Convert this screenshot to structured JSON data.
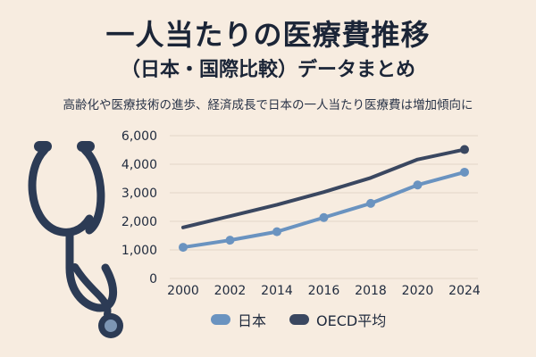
{
  "header": {
    "title": "一人当たりの医療費推移",
    "subtitle": "（日本・国際比較）データまとめ",
    "caption": "高齢化や医療技術の進歩、経済成長で日本の一人当たり医療費は増加傾向に"
  },
  "icon": "stethoscope-icon",
  "colors": {
    "background": "#f7ece0",
    "japan": "#6a93c0",
    "oecd": "#3a4760",
    "grid": "#e3d6c8",
    "text": "#1f2a3d"
  },
  "chart_data": {
    "type": "line",
    "categories": [
      "2000",
      "2002",
      "2014",
      "2016",
      "2018",
      "2020",
      "2024"
    ],
    "y_ticks": [
      "6,000",
      "4,000",
      "3,000",
      "2,000",
      "1,000",
      "0"
    ],
    "series": [
      {
        "name": "日本",
        "values": [
          1100,
          1350,
          1650,
          2150,
          2650,
          3300,
          3750
        ],
        "markers": true
      },
      {
        "name": "OECD平均",
        "values": [
          1800,
          2200,
          2600,
          3050,
          3550,
          4200,
          4550
        ],
        "markers": false
      }
    ],
    "grid": true,
    "legend_position": "bottom"
  }
}
